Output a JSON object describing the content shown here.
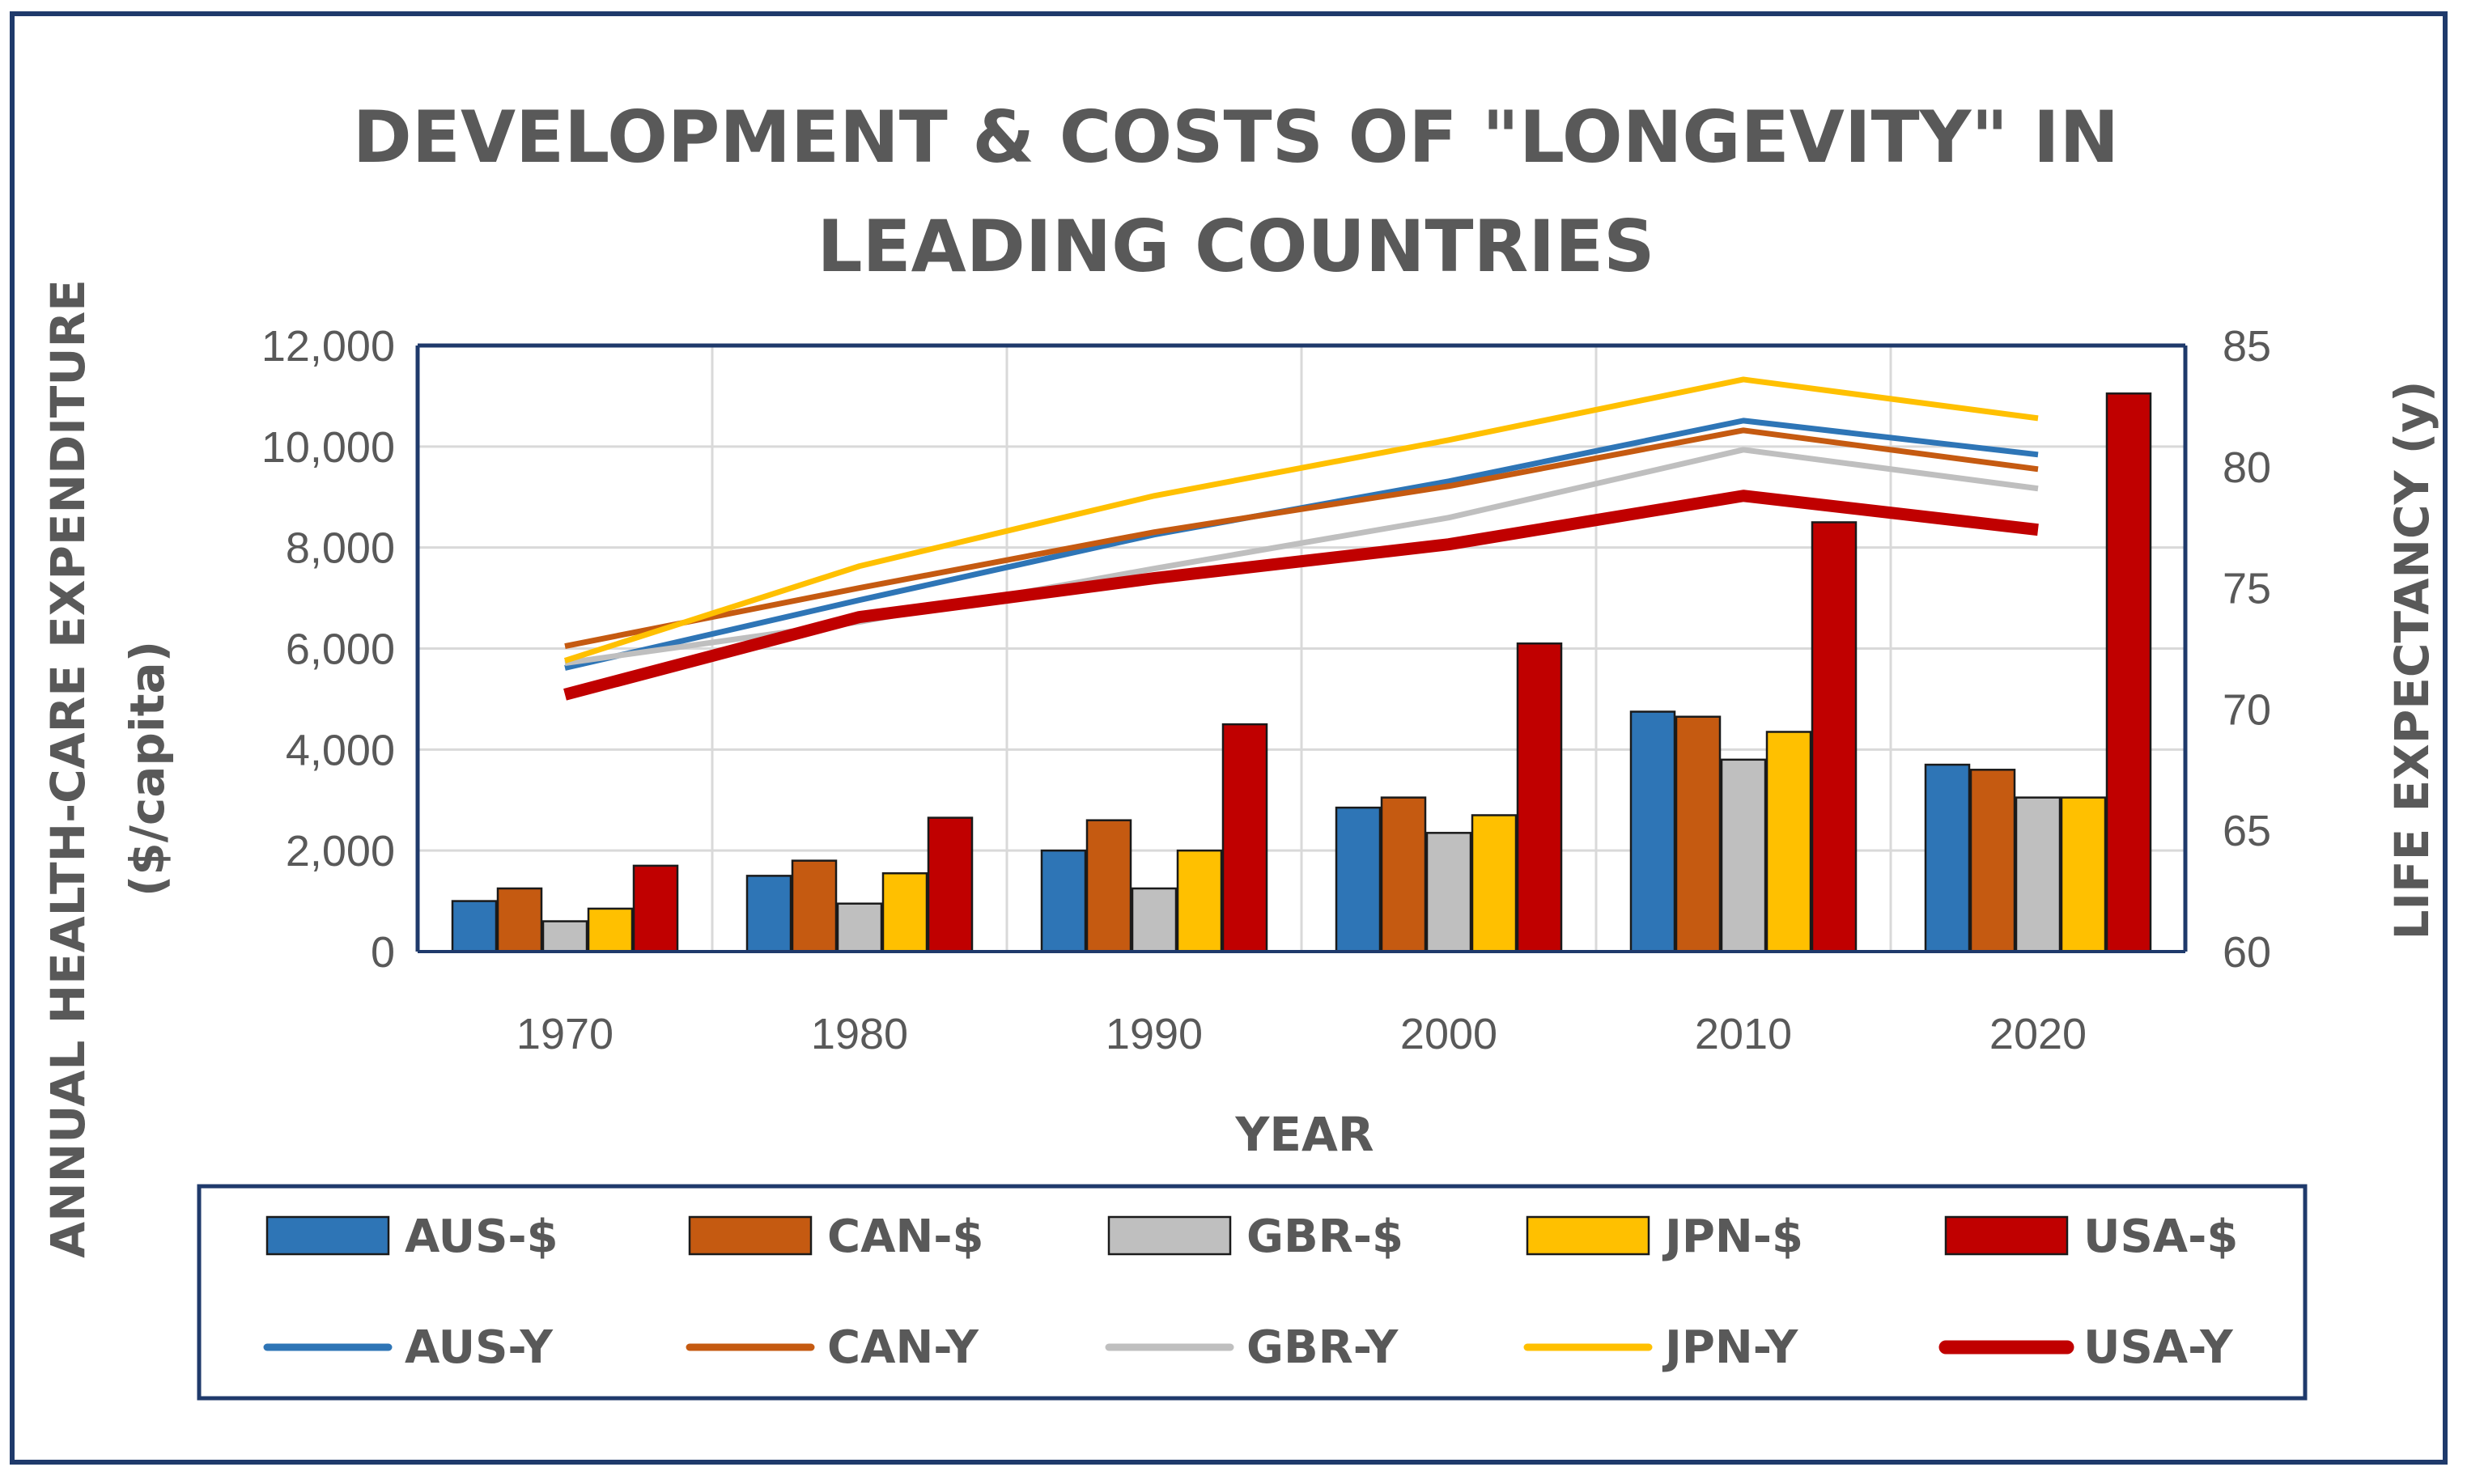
{
  "chart_data": {
    "type": "bar+line",
    "title_lines": [
      "DEVELOPMENT  & COSTS OF \"LONGEVITY\" IN",
      "LEADING COUNTRIES"
    ],
    "xlabel": "YEAR",
    "ylabel_lines": [
      "ANNUAL HEALTH-CARE EXPENDITURE",
      "($/capita)"
    ],
    "y2label": "LIFE EXPECTANCY (y)",
    "categories": [
      "1970",
      "1980",
      "1990",
      "2000",
      "2010",
      "2020"
    ],
    "ylim": [
      0,
      12000
    ],
    "yticks": [
      0,
      2000,
      4000,
      6000,
      8000,
      10000,
      12000
    ],
    "ytick_labels": [
      "0",
      "2,000",
      "4,000",
      "6,000",
      "8,000",
      "10,000",
      "12,000"
    ],
    "y2lim": [
      60,
      85
    ],
    "y2ticks": [
      60,
      65,
      70,
      75,
      80,
      85
    ],
    "y2tick_labels": [
      "60",
      "65",
      "70",
      "75",
      "80",
      "85"
    ],
    "grid": true,
    "bar_series": [
      {
        "name": "AUS-$",
        "color": "#2e75b6",
        "values": [
          1000,
          1500,
          2000,
          2850,
          4750,
          3700
        ]
      },
      {
        "name": "CAN-$",
        "color": "#c55a11",
        "values": [
          1250,
          1800,
          2600,
          3050,
          4650,
          3600
        ]
      },
      {
        "name": "GBR-$",
        "color": "#bfbfbf",
        "values": [
          600,
          950,
          1250,
          2350,
          3800,
          3050
        ]
      },
      {
        "name": "JPN-$",
        "color": "#ffc000",
        "values": [
          850,
          1550,
          2000,
          2700,
          4350,
          3050
        ]
      },
      {
        "name": "USA-$",
        "color": "#c00000",
        "values": [
          1700,
          2650,
          4500,
          6100,
          8500,
          11050
        ]
      }
    ],
    "line_series": [
      {
        "name": "AUS-Y",
        "color": "#2e75b6",
        "width": 7,
        "values": [
          71.7,
          74.5,
          77.2,
          79.4,
          81.9,
          80.5
        ]
      },
      {
        "name": "CAN-Y",
        "color": "#c55a11",
        "width": 7,
        "values": [
          72.6,
          75.0,
          77.3,
          79.2,
          81.5,
          79.9
        ]
      },
      {
        "name": "GBR-Y",
        "color": "#bfbfbf",
        "width": 7,
        "values": [
          71.9,
          73.6,
          75.8,
          77.9,
          80.7,
          79.1
        ]
      },
      {
        "name": "JPN-Y",
        "color": "#ffc000",
        "width": 7,
        "values": [
          72.0,
          75.9,
          78.8,
          81.1,
          83.6,
          82.0
        ]
      },
      {
        "name": "USA-Y",
        "color": "#c00000",
        "width": 15,
        "values": [
          70.6,
          73.8,
          75.4,
          76.8,
          78.8,
          77.4
        ]
      }
    ],
    "legend_position": "bottom"
  }
}
